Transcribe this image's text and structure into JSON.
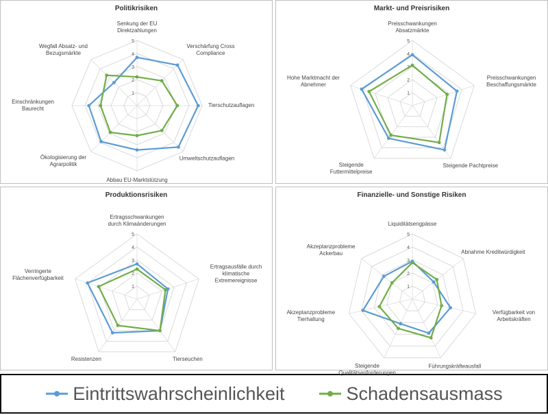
{
  "chart_data": [
    {
      "type": "radar",
      "title": "Politikrisiken",
      "categories": [
        "Senkung der EU Direktzahlungen",
        "Verschärfung Cross Compliance",
        "Tierschutzauflagen",
        "Umweltschutzauflagen",
        "Abbau EU-Marktstützung",
        "Ökologisierung der Agrarpolitik",
        "Einschränkungen Baurecht",
        "Wegfall Absatz- und Bezugsmärkte"
      ],
      "series": [
        {
          "values": [
            3.7,
            4.4,
            4.7,
            4.5,
            3.4,
            3.9,
            3.7,
            2.5
          ]
        },
        {
          "values": [
            2.2,
            2.7,
            3.1,
            2.7,
            2.3,
            2.9,
            2.8,
            3.3
          ]
        }
      ],
      "ylim": [
        0,
        5
      ],
      "yticks": [
        1,
        2,
        3,
        4,
        5
      ]
    },
    {
      "type": "radar",
      "title": "Markt- und Preisrisiken",
      "categories": [
        "Preisschwankungen Absatzmärkte",
        "Preisschwankungen Beschaffungsmärkte",
        "Steigende Pachtpreise",
        "Steigende Futtermittelpreise",
        "Hohe Marktmacht der Abnehmer"
      ],
      "series": [
        {
          "values": [
            3.9,
            3.6,
            4.2,
            3.1,
            4.1
          ]
        },
        {
          "values": [
            3.1,
            2.8,
            3.5,
            2.8,
            3.5
          ]
        }
      ],
      "ylim": [
        0,
        5
      ],
      "yticks": [
        1,
        2,
        3,
        4,
        5
      ]
    },
    {
      "type": "radar",
      "title": "Produktionsrisiken",
      "categories": [
        "Ertragsschwankungen durch Klimaänderungen",
        "Ertragsausfälle durch klimatische Extremereignisse",
        "Tierseuchen",
        "Resistenzen",
        "Verringerte Flächenverfügbarkeit"
      ],
      "series": [
        {
          "values": [
            2.7,
            2.5,
            3.0,
            3.2,
            4.0
          ]
        },
        {
          "values": [
            2.3,
            2.3,
            3.0,
            2.5,
            3.1
          ]
        }
      ],
      "ylim": [
        0,
        5
      ],
      "yticks": [
        1,
        2,
        3,
        4,
        5
      ]
    },
    {
      "type": "radar",
      "title": "Finanzielle- und Sonstige Risiken",
      "categories": [
        "Liquiditätsengpässe",
        "Abnahme Kreditwürdigkeit",
        "Verfügbarkeit von Arbeitskräften",
        "Führungskräfteausfall",
        "Steigende Qualitätsanforderungen",
        "Akzeptanzprobleme Tierhaltung",
        "Akzeptanzprobleme Ackerbau"
      ],
      "series": [
        {
          "values": [
            2.9,
            2.1,
            3.0,
            2.9,
            2.1,
            3.9,
            2.8
          ]
        },
        {
          "values": [
            2.8,
            2.4,
            2.3,
            3.3,
            2.5,
            2.6,
            2.0
          ]
        }
      ],
      "ylim": [
        0,
        5
      ],
      "yticks": [
        1,
        2,
        3,
        4,
        5
      ]
    }
  ],
  "legend": [
    {
      "name": "Eintrittswahrscheinlichkeit",
      "color": "#5b9bd5"
    },
    {
      "name": "Schadensausmass",
      "color": "#70ad47"
    }
  ]
}
